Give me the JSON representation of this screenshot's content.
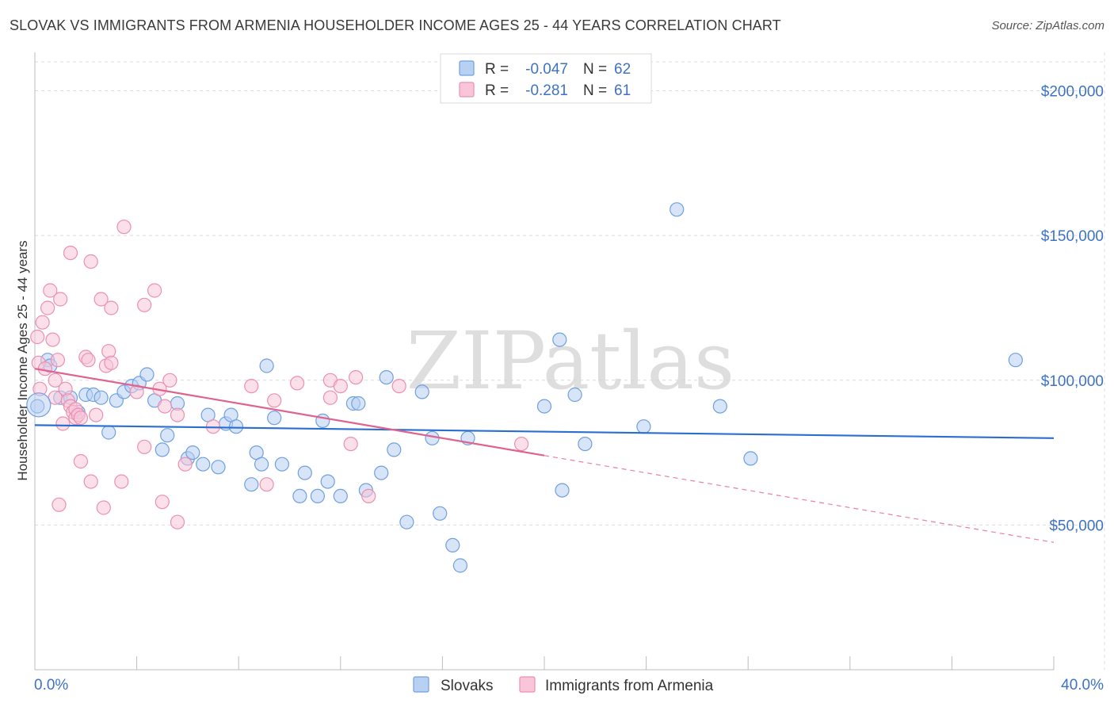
{
  "header": {
    "title": "SLOVAK VS IMMIGRANTS FROM ARMENIA HOUSEHOLDER INCOME AGES 25 - 44 YEARS CORRELATION CHART",
    "source": "Source: ZipAtlas.com"
  },
  "watermark": "ZIPatlas",
  "colors": {
    "blue": "#6fa0e0",
    "blue_fill": "#b8d0f2",
    "blue_line": "#2a6fcf",
    "pink": "#ec8fb0",
    "pink_fill": "#f8c6d8",
    "pink_line": "#e0628e",
    "axis_text": "#3d72c4"
  },
  "legend": {
    "rows": [
      {
        "series": "blue",
        "r_label": "R =",
        "r_value": "-0.047",
        "n_label": "N =",
        "n_value": "62"
      },
      {
        "series": "pink",
        "r_label": "R =",
        "r_value": "-0.281",
        "n_label": "N =",
        "n_value": "61"
      }
    ]
  },
  "chart_data": {
    "type": "scatter",
    "title": "SLOVAK VS IMMIGRANTS FROM ARMENIA HOUSEHOLDER INCOME AGES 25 - 44 YEARS CORRELATION CHART",
    "xlabel": "",
    "ylabel": "Householder Income Ages 25 - 44 years",
    "xlim": [
      0,
      40
    ],
    "ylim": [
      0,
      210000
    ],
    "x_tick_labels": [
      "0.0%",
      "40.0%"
    ],
    "y_ticks": [
      50000,
      100000,
      150000,
      200000
    ],
    "y_tick_labels": [
      "$50,000",
      "$100,000",
      "$150,000",
      "$200,000"
    ],
    "grid": true,
    "legend_position": "top-center",
    "series": [
      {
        "name": "Slovaks",
        "color": "blue",
        "trend": {
          "x": [
            0,
            40
          ],
          "y": [
            84500,
            80000
          ]
        },
        "points": [
          [
            0.1,
            91000
          ],
          [
            0.5,
            107000
          ],
          [
            0.6,
            105000
          ],
          [
            1.0,
            94000
          ],
          [
            1.4,
            94000
          ],
          [
            1.7,
            89000
          ],
          [
            2.0,
            95000
          ],
          [
            2.3,
            95000
          ],
          [
            2.6,
            94000
          ],
          [
            2.9,
            82000
          ],
          [
            3.2,
            93000
          ],
          [
            3.5,
            96000
          ],
          [
            3.8,
            98000
          ],
          [
            4.1,
            99000
          ],
          [
            4.4,
            102000
          ],
          [
            4.7,
            93000
          ],
          [
            5.0,
            76000
          ],
          [
            5.2,
            81000
          ],
          [
            5.6,
            92000
          ],
          [
            6.0,
            73000
          ],
          [
            6.2,
            75000
          ],
          [
            6.6,
            71000
          ],
          [
            6.8,
            88000
          ],
          [
            7.2,
            70000
          ],
          [
            7.5,
            85000
          ],
          [
            7.7,
            88000
          ],
          [
            7.9,
            84000
          ],
          [
            8.5,
            64000
          ],
          [
            8.7,
            75000
          ],
          [
            8.9,
            71000
          ],
          [
            9.1,
            105000
          ],
          [
            9.4,
            87000
          ],
          [
            9.7,
            71000
          ],
          [
            10.4,
            60000
          ],
          [
            10.6,
            68000
          ],
          [
            11.1,
            60000
          ],
          [
            11.3,
            86000
          ],
          [
            11.5,
            65000
          ],
          [
            12.0,
            60000
          ],
          [
            12.5,
            92000
          ],
          [
            12.7,
            92000
          ],
          [
            13.0,
            62000
          ],
          [
            13.6,
            68000
          ],
          [
            13.8,
            101000
          ],
          [
            14.1,
            76000
          ],
          [
            14.6,
            51000
          ],
          [
            15.2,
            96000
          ],
          [
            15.6,
            80000
          ],
          [
            15.9,
            54000
          ],
          [
            16.4,
            43000
          ],
          [
            16.7,
            36000
          ],
          [
            17.0,
            80000
          ],
          [
            20.0,
            91000
          ],
          [
            20.6,
            114000
          ],
          [
            20.7,
            62000
          ],
          [
            21.2,
            95000
          ],
          [
            21.6,
            78000
          ],
          [
            23.9,
            84000
          ],
          [
            25.2,
            159000
          ],
          [
            26.9,
            91000
          ],
          [
            28.1,
            73000
          ],
          [
            38.5,
            107000
          ]
        ]
      },
      {
        "name": "Immigrants from Armenia",
        "color": "pink",
        "trend": {
          "x": [
            0,
            20
          ],
          "y": [
            104000,
            74000
          ]
        },
        "trend_dashed": {
          "x": [
            20,
            40
          ],
          "y": [
            74000,
            44000
          ]
        },
        "points": [
          [
            0.1,
            115000
          ],
          [
            0.15,
            106000
          ],
          [
            0.2,
            97000
          ],
          [
            0.3,
            120000
          ],
          [
            0.4,
            104000
          ],
          [
            0.5,
            125000
          ],
          [
            0.6,
            131000
          ],
          [
            0.7,
            114000
          ],
          [
            0.8,
            94000
          ],
          [
            0.8,
            100000
          ],
          [
            0.9,
            107000
          ],
          [
            0.95,
            57000
          ],
          [
            1.0,
            128000
          ],
          [
            1.1,
            85000
          ],
          [
            1.2,
            97000
          ],
          [
            1.3,
            93000
          ],
          [
            1.4,
            91000
          ],
          [
            1.4,
            144000
          ],
          [
            1.5,
            89000
          ],
          [
            1.6,
            87000
          ],
          [
            1.6,
            90000
          ],
          [
            1.7,
            88000
          ],
          [
            1.8,
            87000
          ],
          [
            1.8,
            72000
          ],
          [
            2.0,
            108000
          ],
          [
            2.1,
            107000
          ],
          [
            2.2,
            141000
          ],
          [
            2.2,
            65000
          ],
          [
            2.4,
            88000
          ],
          [
            2.6,
            128000
          ],
          [
            2.7,
            56000
          ],
          [
            2.8,
            105000
          ],
          [
            2.9,
            110000
          ],
          [
            3.0,
            106000
          ],
          [
            3.0,
            125000
          ],
          [
            3.4,
            65000
          ],
          [
            3.5,
            153000
          ],
          [
            4.0,
            96000
          ],
          [
            4.3,
            126000
          ],
          [
            4.3,
            77000
          ],
          [
            4.7,
            131000
          ],
          [
            4.9,
            97000
          ],
          [
            5.0,
            58000
          ],
          [
            5.1,
            91000
          ],
          [
            5.3,
            100000
          ],
          [
            5.6,
            51000
          ],
          [
            5.6,
            88000
          ],
          [
            5.9,
            71000
          ],
          [
            7.0,
            84000
          ],
          [
            8.5,
            98000
          ],
          [
            9.1,
            64000
          ],
          [
            9.4,
            93000
          ],
          [
            10.3,
            99000
          ],
          [
            11.6,
            100000
          ],
          [
            11.6,
            94000
          ],
          [
            12.0,
            98000
          ],
          [
            12.4,
            78000
          ],
          [
            12.6,
            101000
          ],
          [
            13.1,
            60000
          ],
          [
            14.3,
            98000
          ],
          [
            19.1,
            78000
          ]
        ]
      }
    ]
  },
  "bottom_legend": [
    {
      "series": "blue",
      "label": "Slovaks"
    },
    {
      "series": "pink",
      "label": "Immigrants from Armenia"
    }
  ]
}
